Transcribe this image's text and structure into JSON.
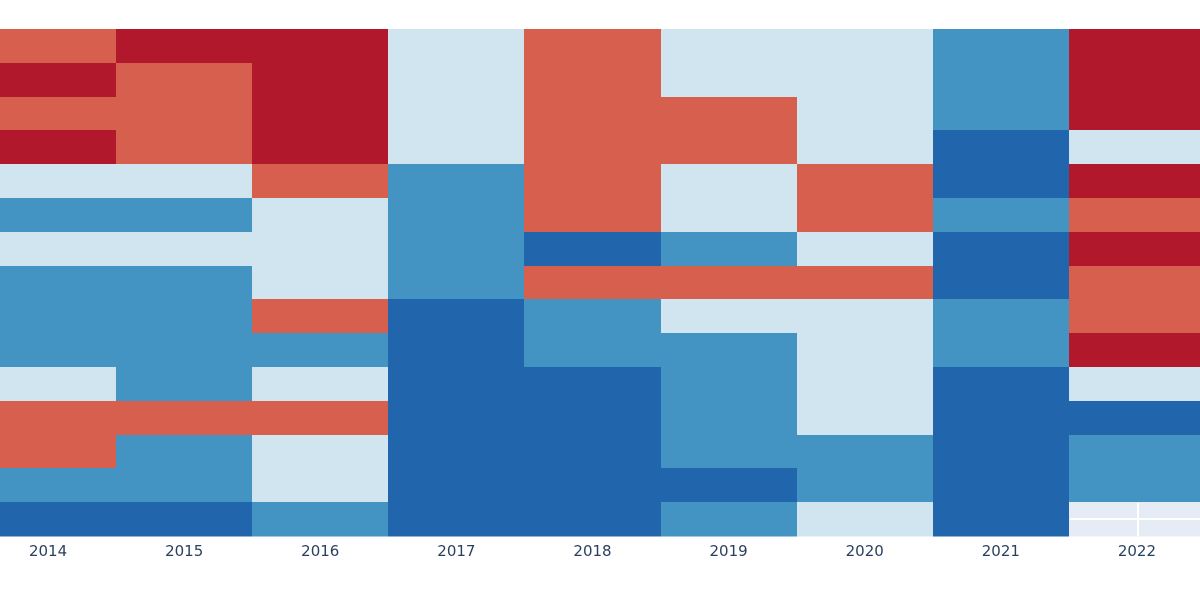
{
  "chart_data": {
    "type": "heatmap",
    "title": "",
    "xlabel": "",
    "ylabel": "",
    "legend": "none",
    "grid": false,
    "x": [
      "2014",
      "2015",
      "2016",
      "2017",
      "2018",
      "2019",
      "2020",
      "2021",
      "2022"
    ],
    "rows": 15,
    "levels": [
      -2,
      -1,
      0,
      1,
      2
    ],
    "colors": {
      "-2": "#2166ac",
      "-1": "#4393c3",
      "0": "#d1e5f0",
      "1": "#d6604d",
      "2": "#b2182b"
    },
    "values": [
      [
        1,
        2,
        2,
        0,
        1,
        0,
        0,
        -1,
        2
      ],
      [
        2,
        1,
        2,
        0,
        1,
        0,
        0,
        -1,
        2
      ],
      [
        1,
        1,
        2,
        0,
        1,
        1,
        0,
        -1,
        2
      ],
      [
        2,
        1,
        2,
        0,
        1,
        1,
        0,
        -2,
        0
      ],
      [
        0,
        0,
        1,
        -1,
        1,
        0,
        1,
        -2,
        2
      ],
      [
        -1,
        -1,
        0,
        -1,
        1,
        0,
        1,
        -1,
        1
      ],
      [
        0,
        0,
        0,
        -1,
        -2,
        -1,
        0,
        -2,
        2
      ],
      [
        -1,
        -1,
        0,
        -1,
        1,
        1,
        1,
        -2,
        1
      ],
      [
        -1,
        -1,
        1,
        -2,
        -1,
        0,
        0,
        -1,
        1
      ],
      [
        -1,
        -1,
        -1,
        -2,
        -1,
        -1,
        0,
        -1,
        2
      ],
      [
        0,
        -1,
        0,
        -2,
        -2,
        -1,
        0,
        -2,
        0
      ],
      [
        1,
        1,
        1,
        -2,
        -2,
        -1,
        0,
        -2,
        -2
      ],
      [
        1,
        -1,
        0,
        -2,
        -2,
        -1,
        -1,
        -2,
        -1
      ],
      [
        -1,
        -1,
        0,
        -2,
        -2,
        -2,
        -1,
        -2,
        -1
      ],
      [
        -2,
        -2,
        -1,
        -2,
        -2,
        -1,
        0,
        -2,
        null
      ]
    ],
    "missing_color": "#e5ecf6"
  }
}
